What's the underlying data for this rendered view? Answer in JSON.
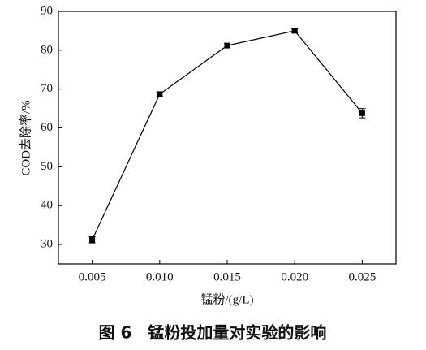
{
  "chart_data": {
    "type": "line",
    "x": [
      0.005,
      0.01,
      0.015,
      0.02,
      0.025
    ],
    "series": [
      {
        "color": "#000000",
        "values": [
          31.2,
          68.7,
          81.2,
          85.0,
          63.8
        ],
        "errors": [
          0.8,
          0.5,
          0.5,
          0.5,
          1.2
        ]
      }
    ],
    "xlim": [
      0.0025,
      0.0275
    ],
    "xticks": [
      0.005,
      0.01,
      0.015,
      0.02,
      0.025
    ],
    "xtick_labels": [
      "0.005",
      "0.010",
      "0.015",
      "0.020",
      "0.025"
    ],
    "ylim": [
      25,
      90
    ],
    "yticks": [
      30,
      40,
      50,
      60,
      70,
      80,
      90
    ],
    "x_label": "锰粉/(g/L)",
    "y_label": "COD去除率/%",
    "caption": "图 6　锰粉投加量对实验的影响"
  }
}
